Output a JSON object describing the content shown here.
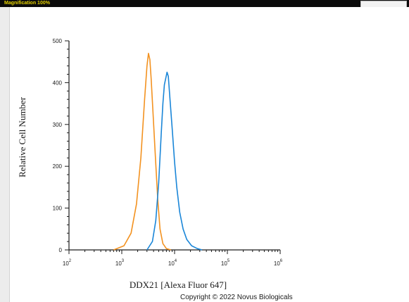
{
  "header": {
    "label": "Magnification 100%"
  },
  "copyright": "Copyright © 2022 Novus Biologicals",
  "chart_data": {
    "type": "line",
    "title": "",
    "xlabel": "DDX21 [Alexa Fluor 647]",
    "ylabel": "Relative Cell Number",
    "x_scale": "log",
    "xlim": [
      100,
      1000000
    ],
    "ylim": [
      0,
      500
    ],
    "x_ticks": [
      {
        "value": 100,
        "base": "10",
        "exp": "2"
      },
      {
        "value": 1000,
        "base": "10",
        "exp": "3"
      },
      {
        "value": 10000,
        "base": "10",
        "exp": "4"
      },
      {
        "value": 100000,
        "base": "10",
        "exp": "5"
      },
      {
        "value": 1000000,
        "base": "10",
        "exp": "6"
      }
    ],
    "y_ticks": [
      0,
      100,
      200,
      300,
      400,
      500
    ],
    "grid": false,
    "legend": "none",
    "series": [
      {
        "color": "#f39220",
        "x": [
          700,
          1100,
          1500,
          1900,
          2300,
          2700,
          3000,
          3200,
          3400,
          3600,
          3900,
          4300,
          4800,
          5300,
          6000,
          7000,
          8500
        ],
        "y": [
          0,
          10,
          40,
          110,
          220,
          360,
          440,
          470,
          455,
          410,
          330,
          230,
          120,
          50,
          15,
          3,
          0
        ]
      },
      {
        "color": "#1a86d8",
        "x": [
          3000,
          3800,
          4400,
          5000,
          5600,
          6000,
          6400,
          6800,
          7200,
          7600,
          8200,
          9000,
          10000,
          11000,
          12500,
          14500,
          17000,
          21000,
          27000,
          33000
        ],
        "y": [
          0,
          20,
          70,
          160,
          280,
          350,
          395,
          410,
          425,
          415,
          360,
          290,
          210,
          150,
          90,
          50,
          25,
          10,
          3,
          0
        ]
      }
    ]
  }
}
